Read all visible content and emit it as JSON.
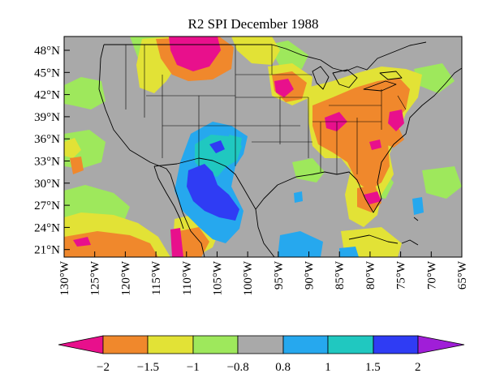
{
  "title": "R2 SPI December 1988",
  "lat_labels": [
    "48°N",
    "45°N",
    "42°N",
    "39°N",
    "36°N",
    "33°N",
    "30°N",
    "27°N",
    "24°N",
    "21°N"
  ],
  "lon_labels": [
    "130°W",
    "125°W",
    "120°W",
    "115°W",
    "110°W",
    "105°W",
    "100°W",
    "95°W",
    "90°W",
    "85°W",
    "80°W",
    "75°W",
    "70°W",
    "65°W"
  ],
  "colorbar": {
    "labels": [
      "−2",
      "−1.5",
      "−1",
      "−0.8",
      "0.8",
      "1",
      "1.5",
      "2"
    ],
    "colors": [
      "#e8108c",
      "#f0882c",
      "#e2e236",
      "#9ee85c",
      "#a9a9a9",
      "#26a8ee",
      "#20c8c0",
      "#2f3cf4",
      "#a01ed8"
    ]
  },
  "map_colors": {
    "background": "#a9a9a9",
    "strong_dry": "#e8108c",
    "moderate_dry": "#f0882c",
    "mild_dry": "#e2e236",
    "slight_dry": "#9ee85c",
    "mild_wet": "#26a8ee",
    "moderate_wet": "#20c8c0",
    "strong_wet": "#2f3cf4",
    "land_outline": "#000000"
  }
}
